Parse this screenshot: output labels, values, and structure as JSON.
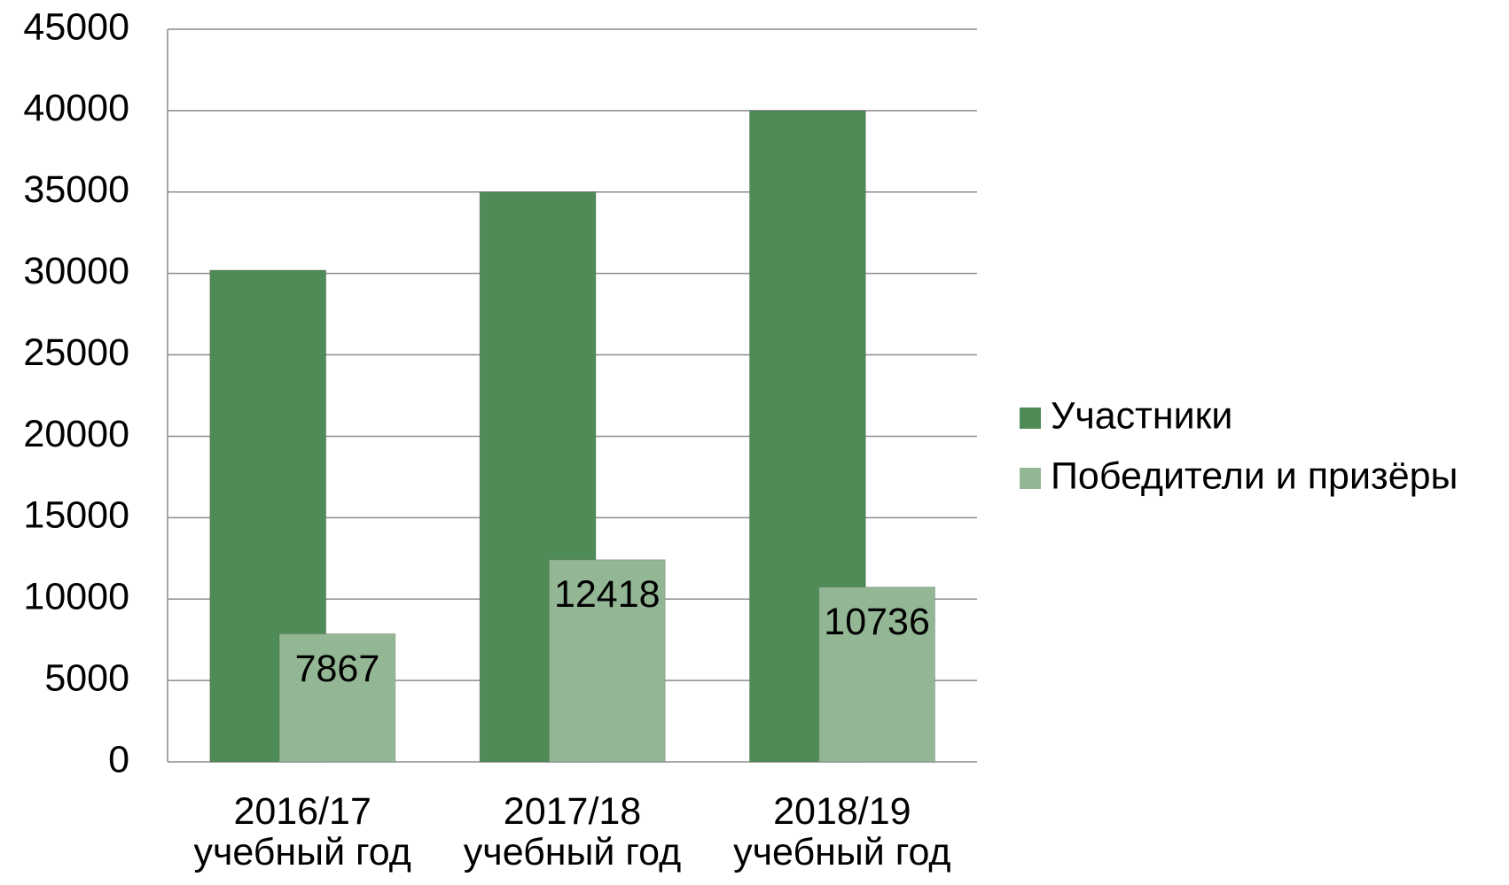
{
  "chart_data": {
    "type": "bar",
    "categories": [
      "2016/17 учебный год",
      "2017/18 учебный год",
      "2018/19 учебный год"
    ],
    "series": [
      {
        "name": "Участники",
        "color": "#4f8b57",
        "values": [
          30200,
          35000,
          40000
        ]
      },
      {
        "name": "Победители и призёры",
        "color": "#93b794",
        "values": [
          7867,
          12418,
          10736
        ],
        "value_labels": [
          "7867",
          "12418",
          "10736"
        ]
      }
    ],
    "ylim": [
      0,
      45000
    ],
    "yticks": [
      0,
      5000,
      10000,
      15000,
      20000,
      25000,
      30000,
      35000,
      40000,
      45000
    ],
    "grid": true,
    "legend": "right"
  }
}
